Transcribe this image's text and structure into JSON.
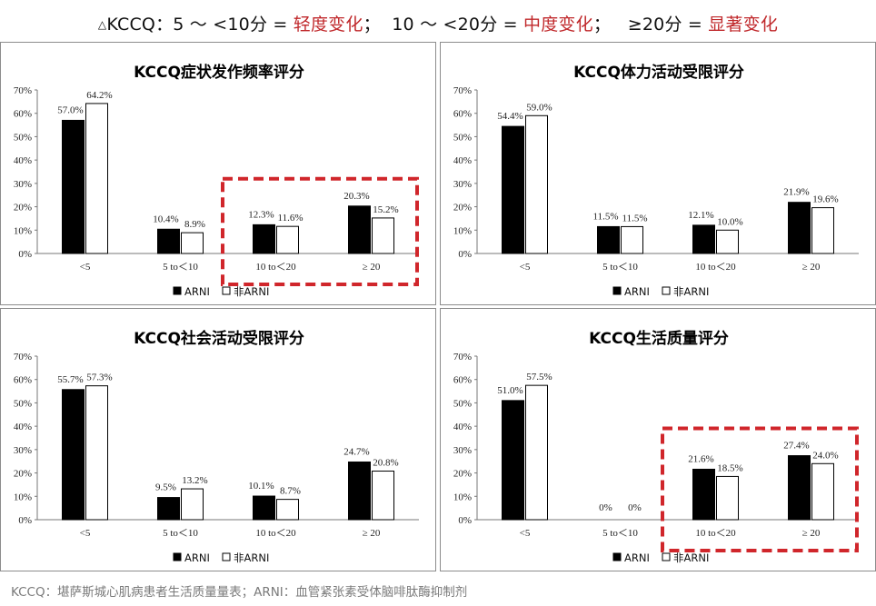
{
  "header": {
    "triangle": "△",
    "prefix": "KCCQ：",
    "seg1": "5 ～ <10分 = ",
    "mild": "轻度变化",
    "sep1": "；  ",
    "seg2": "10 ～ <20分 = ",
    "moderate": "中度变化",
    "sep2": "；   ",
    "seg3": "≥20分 = ",
    "significant": "显著变化"
  },
  "footer": "KCCQ：堪萨斯城心肌病患者生活质量量表；ARNI：血管紧张素受体脑啡肽酶抑制剂",
  "colors": {
    "arni": "#000000",
    "non_arni": "#ffffff",
    "highlight": "#d0262b",
    "header_red": "#c0282b"
  },
  "chart_data": [
    {
      "type": "bar",
      "title": "KCCQ症状发作频率评分",
      "categories": [
        "<5",
        "5 to＜10",
        "10 to＜20",
        "≥ 20"
      ],
      "series": [
        {
          "name": "ARNI",
          "values": [
            57.0,
            10.4,
            12.3,
            20.3
          ],
          "labels": [
            "57.0%",
            "10.4%",
            "12.3%",
            "20.3%"
          ]
        },
        {
          "name": "非ARNI",
          "values": [
            64.2,
            8.9,
            11.6,
            15.2
          ],
          "labels": [
            "64.2%",
            "8.9%",
            "11.6%",
            "15.2%"
          ]
        }
      ],
      "ylim": [
        0,
        70
      ],
      "yticks": [
        "0%",
        "10%",
        "20%",
        "30%",
        "40%",
        "50%",
        "60%",
        "70%"
      ],
      "highlight_categories": [
        2,
        3
      ],
      "legend": "bottom-center"
    },
    {
      "type": "bar",
      "title": "KCCQ体力活动受限评分",
      "categories": [
        "<5",
        "5 to＜10",
        "10 to＜20",
        "≥ 20"
      ],
      "series": [
        {
          "name": "ARNI",
          "values": [
            54.4,
            11.5,
            12.1,
            21.9
          ],
          "labels": [
            "54.4%",
            "11.5%",
            "12.1%",
            "21.9%"
          ]
        },
        {
          "name": "非ARNI",
          "values": [
            59.0,
            11.5,
            10.0,
            19.6
          ],
          "labels": [
            "59.0%",
            "11.5%",
            "10.0%",
            "19.6%"
          ]
        }
      ],
      "ylim": [
        0,
        70
      ],
      "yticks": [
        "0%",
        "10%",
        "20%",
        "30%",
        "40%",
        "50%",
        "60%",
        "70%"
      ],
      "highlight_categories": [],
      "legend": "bottom-center"
    },
    {
      "type": "bar",
      "title": "KCCQ社会活动受限评分",
      "categories": [
        "<5",
        "5 to＜10",
        "10 to＜20",
        "≥ 20"
      ],
      "series": [
        {
          "name": "ARNI",
          "values": [
            55.7,
            9.5,
            10.1,
            24.7
          ],
          "labels": [
            "55.7%",
            "9.5%",
            "10.1%",
            "24.7%"
          ]
        },
        {
          "name": "非ARNI",
          "values": [
            57.3,
            13.2,
            8.7,
            20.8
          ],
          "labels": [
            "57.3%",
            "13.2%",
            "8.7%",
            "20.8%"
          ]
        }
      ],
      "ylim": [
        0,
        70
      ],
      "yticks": [
        "0%",
        "10%",
        "20%",
        "30%",
        "40%",
        "50%",
        "60%",
        "70%"
      ],
      "highlight_categories": [],
      "legend": "bottom-center"
    },
    {
      "type": "bar",
      "title": "KCCQ生活质量评分",
      "categories": [
        "<5",
        "5 to＜10",
        "10 to＜20",
        "≥ 20"
      ],
      "series": [
        {
          "name": "ARNI",
          "values": [
            51.0,
            0,
            21.6,
            27.4
          ],
          "labels": [
            "51.0%",
            "0%",
            "21.6%",
            "27.4%"
          ]
        },
        {
          "name": "非ARNI",
          "values": [
            57.5,
            0,
            18.5,
            24.0
          ],
          "labels": [
            "57.5%",
            "0%",
            "18.5%",
            "24.0%"
          ]
        }
      ],
      "ylim": [
        0,
        70
      ],
      "yticks": [
        "0%",
        "10%",
        "20%",
        "30%",
        "40%",
        "50%",
        "60%",
        "70%"
      ],
      "highlight_categories": [
        2,
        3
      ],
      "legend": "bottom-center"
    }
  ]
}
